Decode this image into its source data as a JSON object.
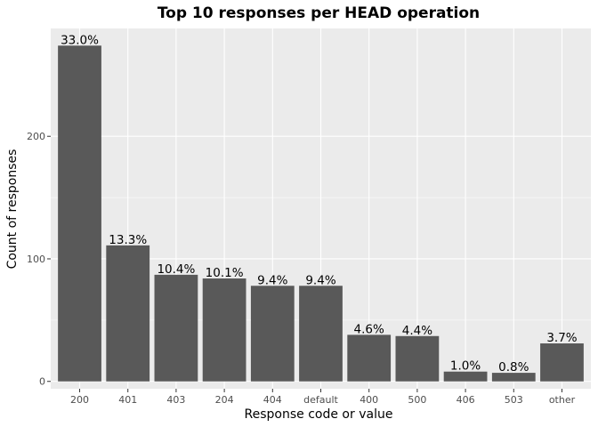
{
  "chart_data": {
    "type": "bar",
    "title": "Top 10 responses per HEAD operation",
    "xlabel": "Response code or value",
    "ylabel": "Count of responses",
    "categories": [
      "200",
      "401",
      "403",
      "204",
      "404",
      "default",
      "400",
      "500",
      "406",
      "503",
      "other"
    ],
    "values": [
      274,
      111,
      87,
      84,
      78,
      78,
      38,
      37,
      8,
      7,
      31
    ],
    "labels": [
      "33.0%",
      "13.3%",
      "10.4%",
      "10.1%",
      "9.4%",
      "9.4%",
      "4.6%",
      "4.4%",
      "1.0%",
      "0.8%",
      "3.7%"
    ],
    "yticks": [
      0,
      100,
      200
    ],
    "ylim": [
      -6,
      288
    ],
    "grid": true,
    "colors": {
      "bar": "#595959",
      "panel": "#ebebeb",
      "grid": "#ffffff",
      "tick": "#333333"
    }
  }
}
